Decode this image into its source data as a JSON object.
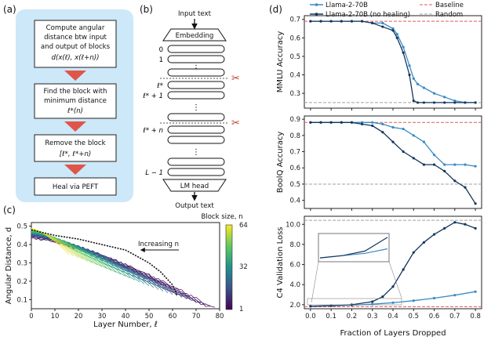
{
  "panel_labels": {
    "a": "(a)",
    "b": "(b)",
    "c": "(c)",
    "d": "(d)"
  },
  "flowchart": {
    "step1": [
      "Compute angular",
      "distance btw input",
      "and output of blocks",
      "d(x(ℓ), x(ℓ+n))"
    ],
    "step2": [
      "Find the block with",
      "minimum distance",
      "ℓ*(n)"
    ],
    "step3": [
      "Remove the block",
      "[ℓ*, ℓ*+n)"
    ],
    "step4": [
      "Heal via PEFT"
    ]
  },
  "architecture": {
    "input": "Input text",
    "embedding": "Embedding",
    "layer_labels": [
      "0",
      "1",
      "ℓ*",
      "ℓ* + 1",
      "ℓ* + n",
      "L − 1"
    ],
    "ellipsis": "⋮",
    "lm_head": "LM head",
    "output": "Output text",
    "scissors": "✂"
  },
  "colors": {
    "llama": "#3a8ac4",
    "no_healing": "#15375f",
    "baseline": "#e05a5a",
    "random": "#a0a0a0",
    "panel_bg": "#cde8f8",
    "arrow": "#e0554a"
  },
  "chart_data": [
    {
      "id": "c",
      "type": "line",
      "xlabel": "Layer Number, ℓ",
      "ylabel": "Angular Distance, d",
      "xlim": [
        0,
        80
      ],
      "ylim": [
        0.05,
        0.52
      ],
      "xticks": [
        "0",
        "10",
        "20",
        "30",
        "40",
        "50",
        "60",
        "70",
        "80"
      ],
      "yticks": [
        "0.1",
        "0.2",
        "0.3",
        "0.4",
        "0.5"
      ],
      "annotation": "Increasing n",
      "colorbar": {
        "title": "Block size, n",
        "ticks": [
          "64",
          "32",
          "1"
        ],
        "range": [
          1,
          64
        ]
      },
      "series_model": {
        "n_min": 1,
        "n_max": 64,
        "layers": 80
      },
      "minimum_path": {
        "x": [
          0,
          10,
          20,
          30,
          40,
          50,
          55,
          60,
          62
        ],
        "y": [
          0.48,
          0.45,
          0.43,
          0.4,
          0.37,
          0.3,
          0.25,
          0.18,
          0.12
        ]
      }
    },
    {
      "id": "d1",
      "type": "line",
      "ylabel": "MMLU Accuracy",
      "ylim": [
        0.22,
        0.72
      ],
      "yticks": [
        "0.3",
        "0.4",
        "0.5",
        "0.6",
        "0.7"
      ],
      "baseline": 0.69,
      "random": 0.25,
      "series": [
        {
          "name": "Llama-2-70B",
          "x": [
            0,
            0.05,
            0.1,
            0.15,
            0.2,
            0.25,
            0.3,
            0.35,
            0.4,
            0.42,
            0.45,
            0.48,
            0.5,
            0.52,
            0.55,
            0.6,
            0.65,
            0.7,
            0.75,
            0.8
          ],
          "values": [
            0.69,
            0.69,
            0.69,
            0.69,
            0.69,
            0.69,
            0.68,
            0.68,
            0.65,
            0.62,
            0.55,
            0.45,
            0.38,
            0.35,
            0.33,
            0.3,
            0.28,
            0.26,
            0.25,
            0.25
          ]
        },
        {
          "name": "Llama-2-70B (no healing)",
          "x": [
            0,
            0.05,
            0.1,
            0.15,
            0.2,
            0.25,
            0.3,
            0.35,
            0.4,
            0.42,
            0.45,
            0.48,
            0.5,
            0.52,
            0.55,
            0.6,
            0.65,
            0.7,
            0.75,
            0.8
          ],
          "values": [
            0.69,
            0.69,
            0.69,
            0.69,
            0.69,
            0.69,
            0.68,
            0.66,
            0.64,
            0.6,
            0.52,
            0.4,
            0.26,
            0.25,
            0.25,
            0.25,
            0.25,
            0.25,
            0.25,
            0.25
          ]
        }
      ]
    },
    {
      "id": "d2",
      "type": "line",
      "ylabel": "BoolQ Accuracy",
      "ylim": [
        0.35,
        0.92
      ],
      "yticks": [
        "0.4",
        "0.5",
        "0.6",
        "0.7",
        "0.8",
        "0.9"
      ],
      "baseline": 0.88,
      "random": 0.5,
      "series": [
        {
          "name": "Llama-2-70B",
          "x": [
            0,
            0.05,
            0.1,
            0.15,
            0.2,
            0.25,
            0.3,
            0.35,
            0.4,
            0.45,
            0.5,
            0.55,
            0.6,
            0.65,
            0.7,
            0.75,
            0.8
          ],
          "values": [
            0.88,
            0.88,
            0.88,
            0.88,
            0.88,
            0.88,
            0.88,
            0.87,
            0.85,
            0.84,
            0.8,
            0.76,
            0.68,
            0.62,
            0.62,
            0.62,
            0.61
          ]
        },
        {
          "name": "Llama-2-70B (no healing)",
          "x": [
            0,
            0.05,
            0.1,
            0.15,
            0.2,
            0.25,
            0.3,
            0.35,
            0.4,
            0.45,
            0.5,
            0.55,
            0.6,
            0.65,
            0.7,
            0.75,
            0.8
          ],
          "values": [
            0.88,
            0.88,
            0.88,
            0.88,
            0.88,
            0.87,
            0.86,
            0.82,
            0.76,
            0.7,
            0.66,
            0.62,
            0.62,
            0.58,
            0.52,
            0.48,
            0.38
          ]
        }
      ]
    },
    {
      "id": "d3",
      "type": "line",
      "ylabel": "C4 Validation Loss",
      "xlabel": "Fraction of Layers Dropped",
      "xlim": [
        -0.03,
        0.83
      ],
      "ylim": [
        1.6,
        10.8
      ],
      "xticks": [
        "0.0",
        "0.1",
        "0.2",
        "0.3",
        "0.4",
        "0.5",
        "0.6",
        "0.7",
        "0.8"
      ],
      "yticks": [
        "2.0",
        "4.0",
        "6.0",
        "8.0",
        "10.0"
      ],
      "baseline": 1.8,
      "random": 10.4,
      "series": [
        {
          "name": "Llama-2-70B",
          "x": [
            0,
            0.1,
            0.2,
            0.3,
            0.4,
            0.5,
            0.6,
            0.7,
            0.8
          ],
          "values": [
            1.85,
            1.9,
            1.95,
            2.05,
            2.2,
            2.4,
            2.65,
            2.95,
            3.3
          ]
        },
        {
          "name": "Llama-2-70B (no healing)",
          "x": [
            0,
            0.1,
            0.2,
            0.3,
            0.35,
            0.4,
            0.45,
            0.5,
            0.55,
            0.6,
            0.65,
            0.7,
            0.75,
            0.8
          ],
          "values": [
            1.85,
            1.9,
            2.0,
            2.3,
            2.8,
            3.8,
            5.5,
            7.2,
            8.2,
            9.0,
            9.6,
            10.2,
            10.0,
            9.6
          ]
        }
      ]
    }
  ],
  "legend": {
    "llama": "Llama-2-70B",
    "no_healing": "Llama-2-70B (no healing)",
    "baseline": "Baseline",
    "random": "Random"
  }
}
